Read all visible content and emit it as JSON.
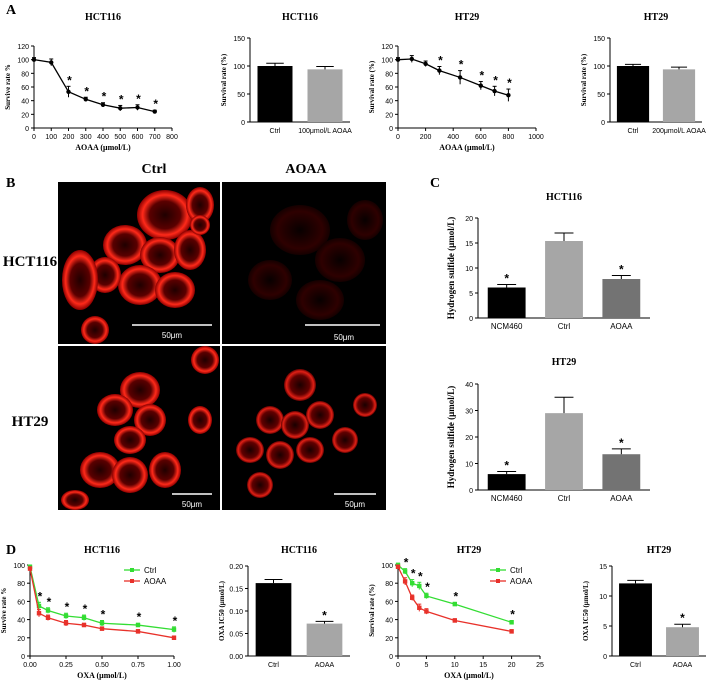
{
  "panel_labels": {
    "A": "A",
    "B": "B",
    "C": "C",
    "D": "D"
  },
  "micrograph": {
    "col_ctrl": "Ctrl",
    "col_aoaa": "AOAA",
    "row_hct116": "HCT116",
    "row_ht29": "HT29",
    "scale": "50μm"
  },
  "chart_data": [
    {
      "id": "a1",
      "type": "line",
      "title": "HCT116",
      "xlabel": "AOAA (μmol/L)",
      "ylabel": "Survive rate %",
      "xlim": [
        0,
        800
      ],
      "ylim": [
        0,
        120
      ],
      "xticks": [
        0,
        100,
        200,
        300,
        400,
        500,
        600,
        700,
        800
      ],
      "yticks": [
        0,
        20,
        40,
        60,
        80,
        100,
        120
      ],
      "series": [
        {
          "name": "",
          "color": "#000000",
          "x": [
            0,
            100,
            200,
            300,
            400,
            500,
            600,
            700
          ],
          "y": [
            100,
            96,
            53,
            42,
            34,
            29,
            30,
            24
          ],
          "err": [
            3,
            5,
            8,
            3,
            3,
            4,
            4,
            2
          ],
          "star": [
            false,
            false,
            true,
            true,
            true,
            true,
            true,
            true
          ]
        }
      ]
    },
    {
      "id": "a2",
      "type": "bar",
      "title": "HCT116",
      "ylabel": "Survival rate (%)",
      "ylim": [
        0,
        150
      ],
      "yticks": [
        0,
        50,
        100,
        150
      ],
      "categories": [
        "Ctrl",
        "100μmol/L AOAA"
      ],
      "values": [
        100,
        94
      ],
      "errors": [
        5,
        5
      ],
      "colors": [
        "#000000",
        "#a6a6a6"
      ],
      "stars": [
        false,
        false
      ]
    },
    {
      "id": "a3",
      "type": "line",
      "title": "HT29",
      "xlabel": "AOAA (μmol/L)",
      "ylabel": "Survival rate (%)",
      "xlim": [
        0,
        1000
      ],
      "ylim": [
        0,
        120
      ],
      "xticks": [
        0,
        200,
        400,
        600,
        800,
        1000
      ],
      "yticks": [
        0,
        20,
        40,
        60,
        80,
        100,
        120
      ],
      "series": [
        {
          "name": "",
          "color": "#000000",
          "x": [
            0,
            100,
            200,
            300,
            450,
            600,
            700,
            800
          ],
          "y": [
            100,
            101,
            94,
            84,
            74,
            62,
            54,
            48
          ],
          "err": [
            3,
            5,
            4,
            6,
            10,
            6,
            7,
            9
          ],
          "star": [
            false,
            false,
            false,
            true,
            true,
            true,
            true,
            true
          ]
        }
      ]
    },
    {
      "id": "a4",
      "type": "bar",
      "title": "HT29",
      "ylabel": "Survival rate (%)",
      "ylim": [
        0,
        150
      ],
      "yticks": [
        0,
        50,
        100,
        150
      ],
      "categories": [
        "Ctrl",
        "200μmol/L AOAA"
      ],
      "values": [
        100,
        94
      ],
      "errors": [
        3,
        4
      ],
      "colors": [
        "#000000",
        "#a6a6a6"
      ],
      "stars": [
        false,
        false
      ]
    },
    {
      "id": "c1",
      "type": "bar",
      "title": "HCT116",
      "ylabel": "Hydrogen sulfide (μmol/L)",
      "ylim": [
        0,
        20
      ],
      "yticks": [
        0,
        5,
        10,
        15,
        20
      ],
      "categories": [
        "NCM460",
        "Ctrl",
        "AOAA"
      ],
      "values": [
        6.1,
        15.4,
        7.8
      ],
      "errors": [
        0.6,
        1.6,
        0.7
      ],
      "colors": [
        "#000000",
        "#a6a6a6",
        "#737373"
      ],
      "stars": [
        true,
        false,
        true
      ]
    },
    {
      "id": "c2",
      "type": "bar",
      "title": "HT29",
      "ylabel": "Hydrogen sulfide (μmol/L)",
      "ylim": [
        0,
        40
      ],
      "yticks": [
        0,
        10,
        20,
        30,
        40
      ],
      "categories": [
        "NCM460",
        "Ctrl",
        "AOAA"
      ],
      "values": [
        6,
        29,
        13.5
      ],
      "errors": [
        1,
        6,
        2
      ],
      "colors": [
        "#000000",
        "#a6a6a6",
        "#737373"
      ],
      "stars": [
        true,
        false,
        true
      ]
    },
    {
      "id": "d1",
      "type": "line",
      "title": "HCT116",
      "xlabel": "OXA (μmol/L)",
      "ylabel": "Survive rate %",
      "xlim": [
        0,
        1
      ],
      "ylim": [
        0,
        100
      ],
      "xticks": [
        0,
        0.25,
        0.5,
        0.75,
        1
      ],
      "xticklabels": [
        "0.00",
        "0.25",
        "0.50",
        "0.75",
        "1.00"
      ],
      "yticks": [
        0,
        20,
        40,
        60,
        80,
        100
      ],
      "legend": "top-right",
      "series": [
        {
          "name": "Ctrl",
          "color": "#33dd33",
          "x": [
            0,
            0.0625,
            0.125,
            0.25,
            0.375,
            0.5,
            0.75,
            1
          ],
          "y": [
            98,
            55,
            50,
            44,
            42,
            36,
            34,
            29
          ],
          "err": [
            2,
            4,
            3,
            3,
            3,
            3,
            2,
            3
          ],
          "star": [
            false,
            true,
            true,
            true,
            true,
            true,
            true,
            true
          ]
        },
        {
          "name": "AOAA",
          "color": "#e8312a",
          "x": [
            0,
            0.0625,
            0.125,
            0.25,
            0.375,
            0.5,
            0.75,
            1
          ],
          "y": [
            96,
            47,
            42,
            36,
            34,
            30,
            27,
            20
          ],
          "err": [
            2,
            4,
            3,
            3,
            2,
            2,
            2,
            2
          ],
          "star": [
            false,
            false,
            false,
            false,
            false,
            false,
            false,
            false
          ]
        }
      ]
    },
    {
      "id": "d2",
      "type": "bar",
      "title": "HCT116",
      "ylabel": "OXA IC50 (μmol/L)",
      "ylim": [
        0,
        0.2
      ],
      "yticks": [
        0,
        0.05,
        0.1,
        0.15,
        0.2
      ],
      "yticklabels": [
        "0.00",
        "0.05",
        "0.10",
        "0.15",
        "0.20"
      ],
      "categories": [
        "Ctrl",
        "AOAA"
      ],
      "values": [
        0.162,
        0.072
      ],
      "errors": [
        0.008,
        0.005
      ],
      "colors": [
        "#000000",
        "#a6a6a6"
      ],
      "stars": [
        false,
        true
      ]
    },
    {
      "id": "d3",
      "type": "line",
      "title": "HT29",
      "xlabel": "OXA (μmol/L)",
      "ylabel": "Survival rate (%)",
      "xlim": [
        0,
        25
      ],
      "ylim": [
        0,
        100
      ],
      "xticks": [
        0,
        5,
        10,
        15,
        20,
        25
      ],
      "yticks": [
        0,
        20,
        40,
        60,
        80,
        100
      ],
      "legend": "top-right",
      "series": [
        {
          "name": "Ctrl",
          "color": "#33dd33",
          "x": [
            0,
            1.25,
            2.5,
            3.75,
            5,
            10,
            20
          ],
          "y": [
            100,
            93,
            80,
            77,
            66,
            57,
            37
          ],
          "err": [
            2,
            3,
            4,
            4,
            3,
            2,
            2
          ],
          "star": [
            false,
            true,
            true,
            true,
            true,
            true,
            true
          ]
        },
        {
          "name": "AOAA",
          "color": "#e8312a",
          "x": [
            0,
            1.25,
            2.5,
            3.75,
            5,
            10,
            20
          ],
          "y": [
            98,
            82,
            64,
            53,
            49,
            39,
            27
          ],
          "err": [
            2,
            4,
            3,
            4,
            3,
            2,
            2
          ],
          "star": [
            false,
            false,
            false,
            false,
            false,
            false,
            false
          ]
        }
      ]
    },
    {
      "id": "d4",
      "type": "bar",
      "title": "HT29",
      "ylabel": "OXA IC50 (μmol/L)",
      "ylim": [
        0,
        15
      ],
      "yticks": [
        0,
        5,
        10,
        15
      ],
      "categories": [
        "Ctrl",
        "AOAA"
      ],
      "values": [
        12.1,
        4.8
      ],
      "errors": [
        0.5,
        0.5
      ],
      "colors": [
        "#000000",
        "#a6a6a6"
      ],
      "stars": [
        false,
        true
      ]
    }
  ]
}
